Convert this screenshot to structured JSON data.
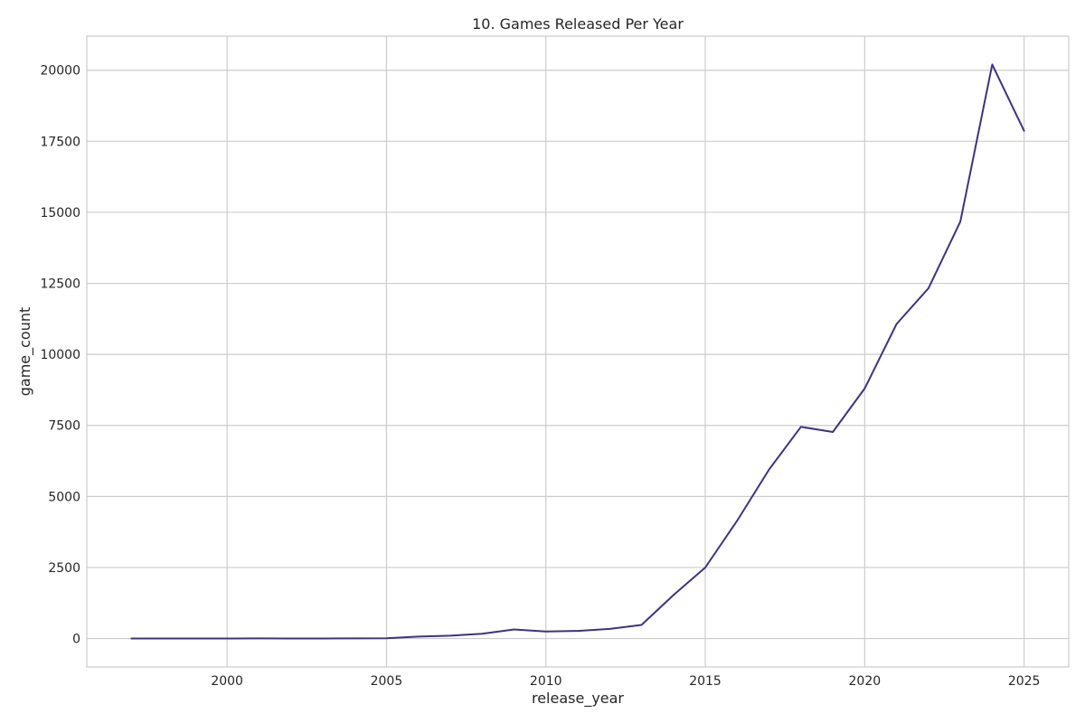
{
  "chart_data": {
    "type": "line",
    "title": "10. Games Released Per Year",
    "xlabel": "release_year",
    "ylabel": "game_count",
    "xlim": [
      1995.6,
      2026.4
    ],
    "ylim": [
      -1000,
      21200
    ],
    "xticks": [
      2000,
      2005,
      2010,
      2015,
      2020,
      2025
    ],
    "yticks": [
      0,
      2500,
      5000,
      7500,
      10000,
      12500,
      15000,
      17500,
      20000
    ],
    "grid": true,
    "legend": "none",
    "line_color": "#3f3380",
    "series": [
      {
        "x": [
          1997,
          1998,
          1999,
          2000,
          2001,
          2002,
          2003,
          2004,
          2005,
          2006,
          2007,
          2008,
          2009,
          2010,
          2011,
          2012,
          2013,
          2014,
          2015,
          2016,
          2017,
          2018,
          2019,
          2020,
          2021,
          2022,
          2023,
          2024,
          2025
        ],
        "values": [
          1,
          1,
          2,
          2,
          5,
          1,
          3,
          6,
          8,
          70,
          100,
          170,
          320,
          250,
          270,
          340,
          480,
          1530,
          2500,
          4150,
          5950,
          7450,
          7270,
          8800,
          11070,
          12330,
          14670,
          20200,
          17870
        ]
      }
    ]
  }
}
